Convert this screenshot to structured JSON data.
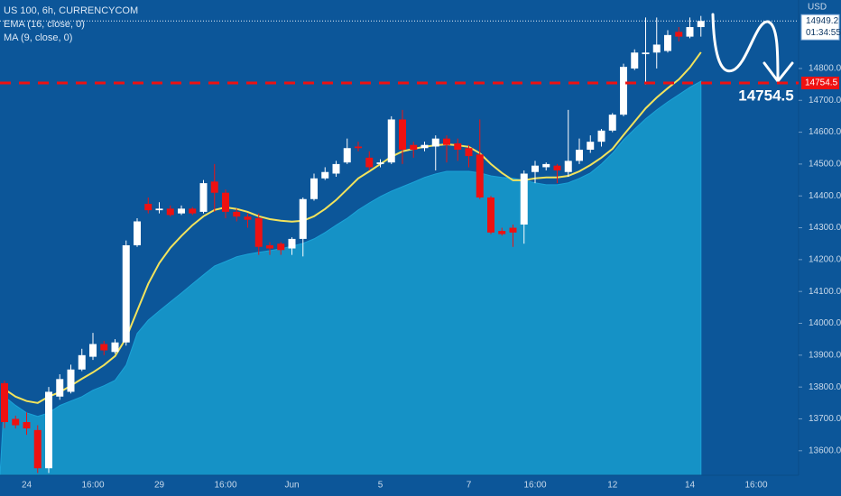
{
  "chart_data": {
    "type": "candlestick",
    "title": "US 100, 6h, CURRENCYCOM",
    "currency": "USD",
    "countdown": "01:34:55",
    "level": 14754.5,
    "up_color": "#ffffff",
    "down_color": "#ee1111",
    "grid": false,
    "ylim": [
      13523,
      15015
    ],
    "yticks": [
      {
        "value": 13600,
        "label": "13600.0"
      },
      {
        "value": 13700,
        "label": "13700.0"
      },
      {
        "value": 13800,
        "label": "13800.0"
      },
      {
        "value": 13900,
        "label": "13900.0"
      },
      {
        "value": 14000,
        "label": "14000.0"
      },
      {
        "value": 14100,
        "label": "14100.0"
      },
      {
        "value": 14200,
        "label": "14200.0"
      },
      {
        "value": 14300,
        "label": "14300.0"
      },
      {
        "value": 14400,
        "label": "14400.0"
      },
      {
        "value": 14500,
        "label": "14500.0"
      },
      {
        "value": 14600,
        "label": "14600.0"
      },
      {
        "value": 14700,
        "label": "14700.0"
      },
      {
        "value": 14800,
        "label": "14800.0"
      }
    ],
    "categories": [
      null,
      null,
      "24",
      null,
      null,
      null,
      null,
      null,
      "16:00",
      null,
      null,
      null,
      null,
      null,
      "29",
      null,
      null,
      null,
      null,
      null,
      "16:00",
      null,
      null,
      null,
      null,
      null,
      "Jun",
      null,
      null,
      null,
      null,
      null,
      null,
      null,
      "5",
      null,
      null,
      null,
      null,
      null,
      null,
      null,
      "7",
      null,
      null,
      null,
      null,
      null,
      "16:00",
      null,
      null,
      null,
      null,
      null,
      null,
      "12",
      null,
      null,
      null,
      null,
      null,
      null,
      "14",
      null,
      null,
      null,
      null,
      null,
      "16:00",
      null,
      null,
      null
    ],
    "open": [
      13812,
      13700,
      13690,
      13665,
      13545,
      13770,
      13785,
      13855,
      13895,
      13935,
      13910,
      13940,
      14245,
      14375,
      14355,
      14360,
      14345,
      14360,
      14350,
      14445,
      14410,
      14350,
      14335,
      14330,
      14245,
      14250,
      14235,
      14265,
      14390,
      14455,
      14470,
      14505,
      14555,
      14520,
      14500,
      14505,
      14640,
      14560,
      14550,
      14555,
      14580,
      14565,
      14550,
      14530,
      14395,
      14290,
      14300,
      14310,
      14475,
      14490,
      14495,
      14475,
      14510,
      14545,
      14570,
      14605,
      14655,
      14800,
      14845,
      14850,
      14855,
      14915,
      14900,
      14930,
      null,
      null,
      null,
      null,
      null,
      null,
      null,
      null
    ],
    "high": [
      13820,
      13710,
      13720,
      13680,
      13800,
      13840,
      13870,
      13920,
      13970,
      13945,
      13950,
      14260,
      14330,
      14395,
      14380,
      14370,
      14370,
      14365,
      14450,
      14500,
      14420,
      14360,
      14345,
      14345,
      14255,
      14255,
      14270,
      14395,
      14470,
      14490,
      14510,
      14580,
      14570,
      14540,
      14515,
      14650,
      14670,
      14570,
      14570,
      14590,
      14590,
      14580,
      14560,
      14640,
      14400,
      14300,
      14310,
      14480,
      14510,
      14505,
      14500,
      14670,
      14580,
      14590,
      14610,
      14660,
      14815,
      14860,
      14960,
      14960,
      14920,
      14930,
      14960,
      14965,
      null,
      null,
      null,
      null,
      null,
      null,
      null,
      null
    ],
    "low": [
      13671,
      13670,
      13650,
      13530,
      13530,
      13760,
      13780,
      13850,
      13885,
      13900,
      13905,
      13930,
      14240,
      14345,
      14345,
      14335,
      14340,
      14340,
      14345,
      14350,
      14330,
      14320,
      14300,
      14215,
      14215,
      14215,
      14215,
      14210,
      14385,
      14450,
      14460,
      14500,
      14540,
      14480,
      14490,
      14500,
      14500,
      14520,
      14540,
      14480,
      14505,
      14510,
      14490,
      14390,
      14280,
      14275,
      14240,
      14250,
      14440,
      14480,
      14440,
      14460,
      14500,
      14535,
      14555,
      14600,
      14650,
      14795,
      14750,
      14800,
      14850,
      14885,
      14895,
      14900,
      null,
      null,
      null,
      null,
      null,
      null,
      null,
      null
    ],
    "close": [
      13690,
      13680,
      13670,
      13545,
      13785,
      13825,
      13855,
      13900,
      13935,
      13915,
      13940,
      14245,
      14320,
      14355,
      14360,
      14340,
      14360,
      14345,
      14440,
      14410,
      14350,
      14335,
      14325,
      14240,
      14235,
      14230,
      14265,
      14390,
      14455,
      14475,
      14500,
      14550,
      14550,
      14490,
      14505,
      14640,
      14545,
      14545,
      14560,
      14580,
      14560,
      14545,
      14525,
      14395,
      14285,
      14280,
      14285,
      14470,
      14495,
      14500,
      14480,
      14510,
      14545,
      14570,
      14605,
      14655,
      14805,
      14850,
      14850,
      14875,
      14905,
      14900,
      14930,
      14949.2,
      null,
      null,
      null,
      null,
      null,
      null,
      null,
      null
    ],
    "indicators": [
      {
        "name": "EMA (16, close, 0)",
        "color": "#f2e35c",
        "style": "line",
        "values": [
          13793,
          13770,
          13756,
          13750,
          13770,
          13784,
          13804,
          13826,
          13846,
          13869,
          13897,
          13954,
          14039,
          14124,
          14189,
          14237,
          14274,
          14308,
          14336,
          14356,
          14364,
          14359,
          14350,
          14336,
          14327,
          14322,
          14319,
          14322,
          14336,
          14359,
          14387,
          14421,
          14455,
          14477,
          14500,
          14523,
          14540,
          14548,
          14554,
          14559,
          14562,
          14559,
          14554,
          14534,
          14500,
          14472,
          14449,
          14449,
          14455,
          14458,
          14458,
          14463,
          14477,
          14497,
          14520,
          14548,
          14591,
          14633,
          14675,
          14709,
          14738,
          14766,
          14803,
          14851,
          null,
          null,
          null,
          null,
          null,
          null,
          null,
          null
        ]
      },
      {
        "name": "MA (9, close, 0)",
        "color": "#1592c6",
        "style": "area",
        "values": [
          13770,
          13742,
          13719,
          13708,
          13719,
          13742,
          13756,
          13770,
          13790,
          13804,
          13821,
          13869,
          13968,
          14010,
          14039,
          14067,
          14095,
          14124,
          14152,
          14180,
          14194,
          14209,
          14217,
          14223,
          14228,
          14234,
          14242,
          14251,
          14265,
          14285,
          14308,
          14330,
          14356,
          14378,
          14398,
          14415,
          14429,
          14443,
          14458,
          14469,
          14477,
          14477,
          14477,
          14472,
          14463,
          14458,
          14455,
          14449,
          14441,
          14435,
          14435,
          14441,
          14455,
          14472,
          14500,
          14534,
          14576,
          14610,
          14642,
          14670,
          14695,
          14718,
          14741,
          14760,
          null,
          null,
          null,
          null,
          null,
          null,
          null,
          null
        ]
      }
    ]
  }
}
